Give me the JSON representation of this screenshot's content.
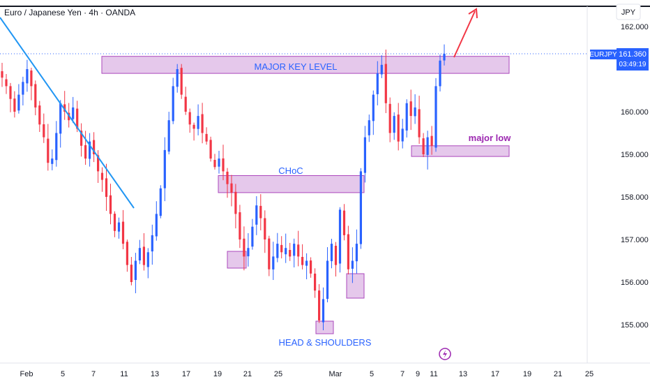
{
  "header": {
    "title": "Euro / Japanese Yen · 4h · OANDA",
    "currency_button": "JPY"
  },
  "price_badge": {
    "symbol": "EURJPY",
    "price": "161.360",
    "countdown": "03:49:19",
    "color": "#2962ff"
  },
  "colors": {
    "up": "#2962ff",
    "down": "#f23645",
    "zone_fill": "#e1bee7",
    "zone_stroke": "#ab47bc",
    "trendline": "#2196f3",
    "arrow": "#f23645"
  },
  "annotations": {
    "major_key_level": "MAJOR KEY LEVEL",
    "choc": "CHoC",
    "major_low": "major low",
    "head_shoulders": "HEAD & SHOULDERS"
  },
  "icons": {
    "header_icon": "lightning-icon"
  },
  "chart_data": {
    "type": "candlestick",
    "symbol": "EURJPY",
    "timeframe": "4h",
    "ylim": [
      154.6,
      162.1
    ],
    "x_ticks": [
      "Feb",
      "5",
      "7",
      "11",
      "13",
      "17",
      "19",
      "21",
      "25",
      "Mar",
      "5",
      "7",
      "9",
      "11",
      "13",
      "17",
      "19",
      "21",
      "25"
    ],
    "y_ticks": [
      "155.000",
      "156.000",
      "157.000",
      "158.000",
      "159.000",
      "160.000",
      "162.000"
    ],
    "zones": [
      {
        "name": "major-key-level",
        "from": 160.9,
        "to": 161.3
      },
      {
        "name": "choc",
        "from": 158.1,
        "to": 158.5
      },
      {
        "name": "major-low",
        "from": 158.95,
        "to": 159.2
      }
    ],
    "closes": [
      160.8,
      160.6,
      160.3,
      160.0,
      160.4,
      160.7,
      161.0,
      160.6,
      160.1,
      159.7,
      159.4,
      158.8,
      158.9,
      159.5,
      160.2,
      160.0,
      159.8,
      160.1,
      159.6,
      159.2,
      158.9,
      159.3,
      159.0,
      158.6,
      158.4,
      158.0,
      157.6,
      157.2,
      157.4,
      156.9,
      156.4,
      156.0,
      156.5,
      156.8,
      156.4,
      156.7,
      157.1,
      157.6,
      158.2,
      159.1,
      159.8,
      160.6,
      161.0,
      160.4,
      160.0,
      159.7,
      159.6,
      159.9,
      159.5,
      159.3,
      158.9,
      158.7,
      158.9,
      158.6,
      158.3,
      158.1,
      157.6,
      157.0,
      156.6,
      156.8,
      157.3,
      157.8,
      157.5,
      157.0,
      156.3,
      156.6,
      156.9,
      156.7,
      156.8,
      156.6,
      156.9,
      156.6,
      156.4,
      156.5,
      156.2,
      155.8,
      155.1,
      155.6,
      156.5,
      156.9,
      156.4,
      157.7,
      157.1,
      156.3,
      156.5,
      156.9,
      158.6,
      159.4,
      159.8,
      160.4,
      160.9,
      161.1,
      160.2,
      159.5,
      159.9,
      159.3,
      159.6,
      160.2,
      159.9,
      160.1,
      159.4,
      159.0,
      159.4,
      159.2,
      160.6,
      161.2,
      161.36
    ]
  }
}
